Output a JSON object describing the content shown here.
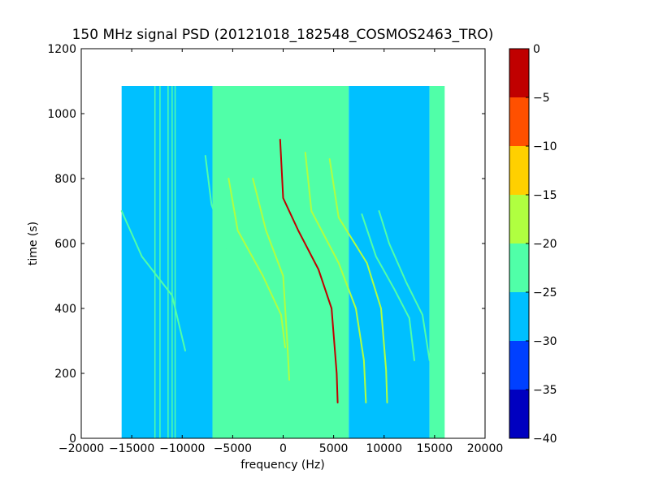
{
  "chart_data": {
    "type": "heatmap",
    "title": "150 MHz signal PSD (20121018_182548_COSMOS2463_TRO)",
    "xlabel": "frequency (Hz)",
    "ylabel": "time (s)",
    "xlim": [
      -20000,
      20000
    ],
    "ylim": [
      0,
      1200
    ],
    "xticks": [
      -20000,
      -15000,
      -10000,
      -5000,
      0,
      5000,
      10000,
      15000,
      20000
    ],
    "yticks": [
      0,
      200,
      400,
      600,
      800,
      1000,
      1200
    ],
    "data_extent": {
      "x": [
        -16000,
        16000
      ],
      "y": [
        0,
        1085
      ]
    },
    "colorbar": {
      "range": [
        -40,
        0
      ],
      "ticks": [
        0,
        -5,
        -10,
        -15,
        -20,
        -25,
        -30,
        -35,
        -40
      ],
      "levels": [
        {
          "from": -40,
          "to": -35,
          "color": "#0000c0"
        },
        {
          "from": -35,
          "to": -30,
          "color": "#0040ff"
        },
        {
          "from": -30,
          "to": -25,
          "color": "#00c0ff"
        },
        {
          "from": -25,
          "to": -20,
          "color": "#50ffa8"
        },
        {
          "from": -20,
          "to": -15,
          "color": "#b0ff40"
        },
        {
          "from": -15,
          "to": -10,
          "color": "#ffd000"
        },
        {
          "from": -10,
          "to": -5,
          "color": "#ff5000"
        },
        {
          "from": -5,
          "to": 0,
          "color": "#c00000"
        }
      ]
    },
    "regions": [
      {
        "x": [
          -16000,
          -7000
        ],
        "y": [
          0,
          1085
        ],
        "level": -27.5
      },
      {
        "x": [
          -7000,
          6500
        ],
        "y": [
          0,
          1085
        ],
        "level": -22.5
      },
      {
        "x": [
          6500,
          14500
        ],
        "y": [
          0,
          1085
        ],
        "level": -27.5
      },
      {
        "x": [
          14500,
          16000
        ],
        "y": [
          0,
          1085
        ],
        "level": -22.5
      }
    ],
    "vertical_lines": [
      {
        "x": -12700,
        "level": -22.5
      },
      {
        "x": -12200,
        "level": -22.5
      },
      {
        "x": -11400,
        "level": -22.5
      },
      {
        "x": -11000,
        "level": -22.5
      },
      {
        "x": -10700,
        "level": -22.5
      }
    ],
    "traces": [
      {
        "level": -2.5,
        "points": [
          [
            -300,
            920
          ],
          [
            0,
            740
          ],
          [
            1500,
            640
          ],
          [
            3500,
            520
          ],
          [
            4800,
            400
          ],
          [
            5300,
            200
          ],
          [
            5400,
            110
          ]
        ]
      },
      {
        "level": -17.5,
        "points": [
          [
            -3000,
            800
          ],
          [
            -1700,
            640
          ],
          [
            0,
            500
          ],
          [
            400,
            300
          ],
          [
            600,
            180
          ]
        ]
      },
      {
        "level": -17.5,
        "points": [
          [
            -5400,
            800
          ],
          [
            -4500,
            640
          ],
          [
            -2000,
            500
          ],
          [
            -200,
            380
          ],
          [
            200,
            280
          ]
        ]
      },
      {
        "level": -17.5,
        "points": [
          [
            2200,
            880
          ],
          [
            2800,
            700
          ],
          [
            5500,
            540
          ],
          [
            7200,
            400
          ],
          [
            8000,
            240
          ],
          [
            8200,
            110
          ]
        ]
      },
      {
        "level": -17.5,
        "points": [
          [
            4600,
            860
          ],
          [
            5500,
            680
          ],
          [
            8300,
            540
          ],
          [
            9700,
            400
          ],
          [
            10200,
            210
          ],
          [
            10300,
            110
          ]
        ]
      },
      {
        "level": -22.5,
        "points": [
          [
            7800,
            690
          ],
          [
            9200,
            560
          ],
          [
            11000,
            460
          ],
          [
            12500,
            370
          ],
          [
            13000,
            240
          ]
        ]
      },
      {
        "level": -22.5,
        "points": [
          [
            9500,
            700
          ],
          [
            10500,
            600
          ],
          [
            12200,
            480
          ],
          [
            13800,
            380
          ],
          [
            14500,
            240
          ]
        ]
      },
      {
        "level": -22.5,
        "points": [
          [
            -7700,
            870
          ],
          [
            -7100,
            720
          ],
          [
            -5500,
            580
          ]
        ]
      },
      {
        "level": -22.5,
        "points": [
          [
            -16000,
            700
          ],
          [
            -14000,
            560
          ],
          [
            -11000,
            440
          ],
          [
            -9700,
            270
          ]
        ]
      }
    ]
  }
}
